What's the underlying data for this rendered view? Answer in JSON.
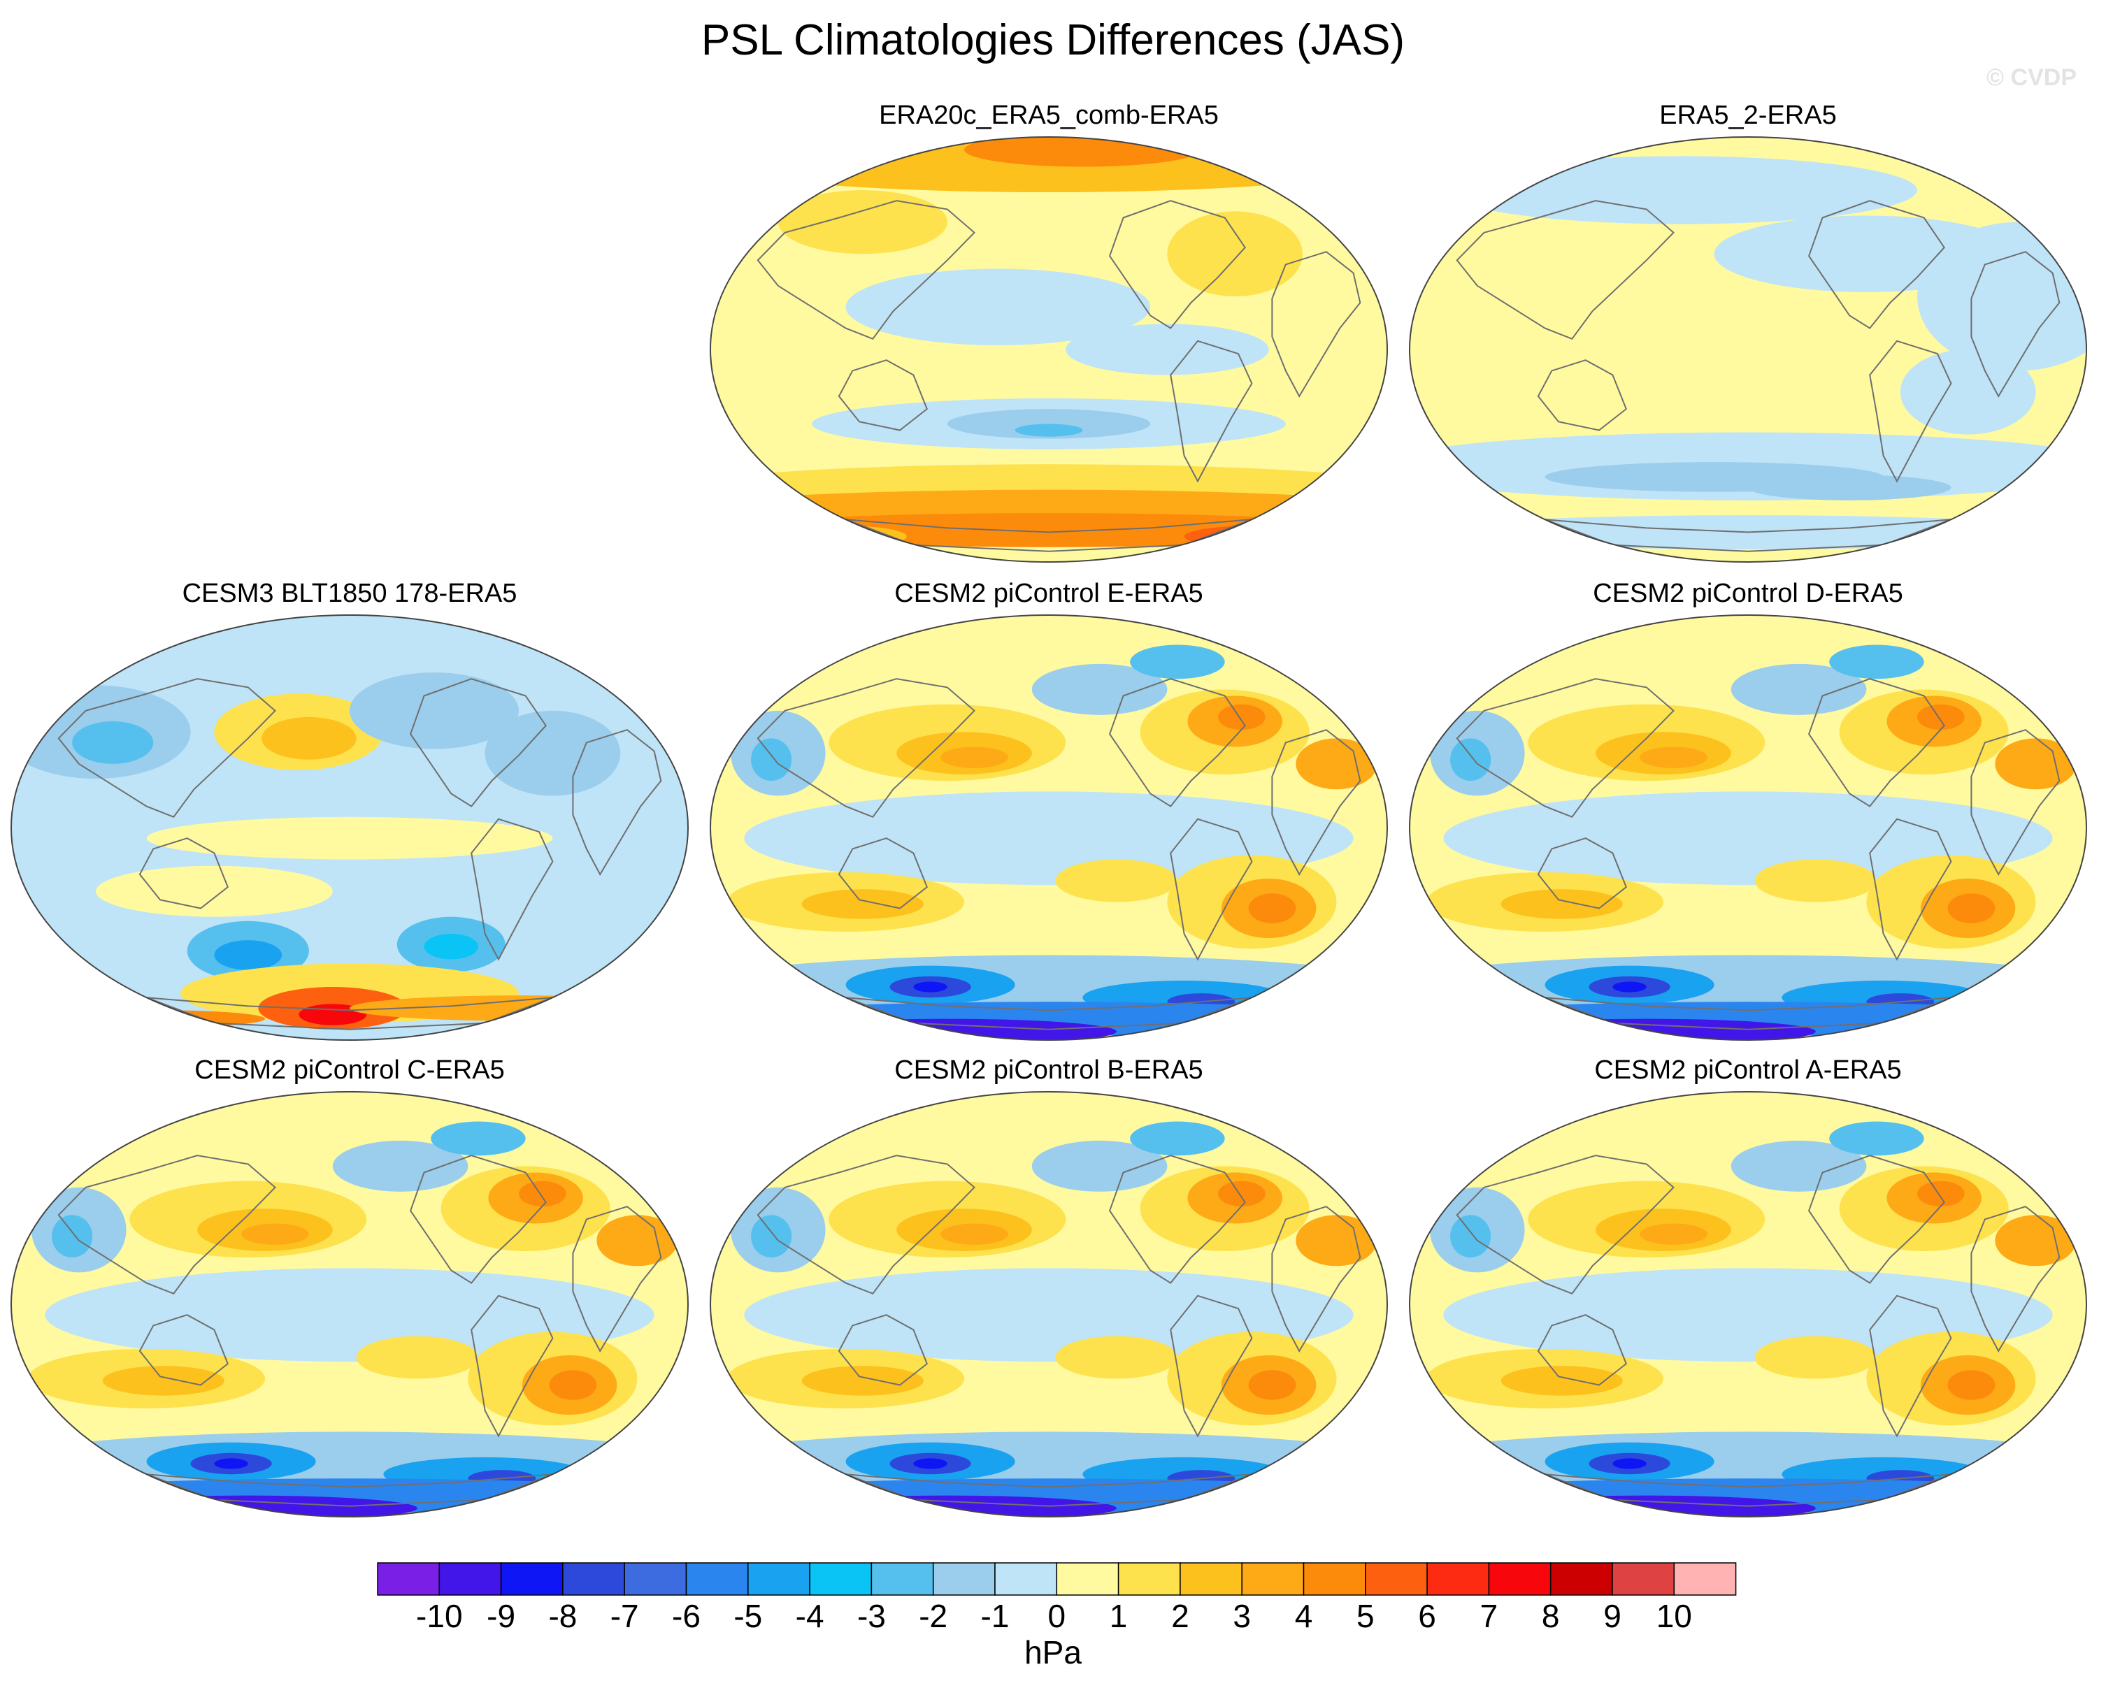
{
  "title": "PSL Climatologies Differences (JAS)",
  "watermark": "© CVDP",
  "panels": [
    {
      "label": "ERA20c_ERA5_comb-ERA5",
      "pattern": "era20c"
    },
    {
      "label": "ERA5_2-ERA5",
      "pattern": "era5_2"
    },
    {
      "label": "CESM3 BLT1850 178-ERA5",
      "pattern": "cesm3"
    },
    {
      "label": "CESM2 piControl E-ERA5",
      "pattern": "cesm2"
    },
    {
      "label": "CESM2 piControl D-ERA5",
      "pattern": "cesm2"
    },
    {
      "label": "CESM2 piControl C-ERA5",
      "pattern": "cesm2"
    },
    {
      "label": "CESM2 piControl B-ERA5",
      "pattern": "cesm2"
    },
    {
      "label": "CESM2 piControl A-ERA5",
      "pattern": "cesm2"
    }
  ],
  "colorbar": {
    "units": "hPa",
    "ticks": [
      "-10",
      "-9",
      "-8",
      "-7",
      "-6",
      "-5",
      "-4",
      "-3",
      "-2",
      "-1",
      "0",
      "1",
      "2",
      "3",
      "4",
      "5",
      "6",
      "7",
      "8",
      "9",
      "10"
    ],
    "colors": [
      "#7a1fe6",
      "#4215e8",
      "#0f16f5",
      "#2c49dc",
      "#3c6ce0",
      "#2b85ee",
      "#18a2f0",
      "#0ac4f5",
      "#55c0ee",
      "#9bcdec",
      "#bfe3f7",
      "#fffaa0",
      "#fde24d",
      "#fdc11e",
      "#fdaa16",
      "#fd8b0b",
      "#fd610f",
      "#fd2b12",
      "#f7070b",
      "#cc0000",
      "#de4242",
      "#ffb3b3"
    ]
  }
}
